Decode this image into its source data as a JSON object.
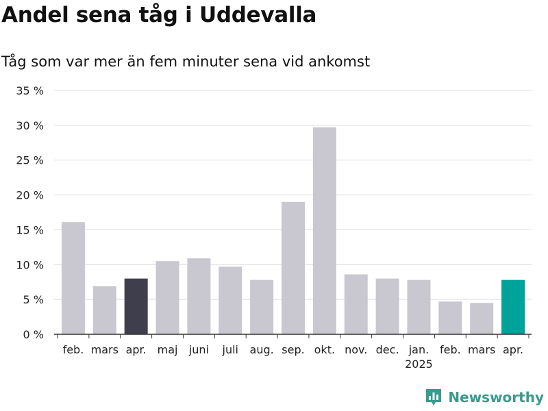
{
  "header": {
    "title": "Andel sena tåg i Uddevalla",
    "subtitle": "Tåg som var mer än fem minuter sena vid ankomst"
  },
  "brand": {
    "name": "Newsworthy",
    "color": "#3a9a8e",
    "icon": "bar-chart-pin-icon"
  },
  "colors": {
    "default": "#c9c8d1",
    "highlight_past": "#3f3e4c",
    "highlight_current": "#00a39a",
    "grid": "#dddddd",
    "axis": "#333333"
  },
  "chart_data": {
    "type": "bar",
    "categories": [
      "feb.",
      "mars",
      "apr.",
      "maj",
      "juni",
      "juli",
      "aug.",
      "sep.",
      "okt.",
      "nov.",
      "dec.",
      "jan.",
      "feb.",
      "mars",
      "apr."
    ],
    "year_labels": [
      "",
      "",
      "",
      "",
      "",
      "",
      "",
      "",
      "",
      "",
      "",
      "2025",
      "",
      "",
      ""
    ],
    "values": [
      16.1,
      6.9,
      8.0,
      10.5,
      10.9,
      9.7,
      7.8,
      19.0,
      29.7,
      8.6,
      8.0,
      7.8,
      4.7,
      4.5,
      7.8
    ],
    "highlight": [
      "default",
      "default",
      "past",
      "default",
      "default",
      "default",
      "default",
      "default",
      "default",
      "default",
      "default",
      "default",
      "default",
      "default",
      "current"
    ],
    "y_ticks": [
      "0 %",
      "5 %",
      "10 %",
      "15 %",
      "20 %",
      "25 %",
      "30 %",
      "35 %"
    ],
    "ylim": [
      0,
      35
    ],
    "ystep": 5,
    "grid": true,
    "title": "Andel sena tåg i Uddevalla",
    "subtitle": "Tåg som var mer än fem minuter sena vid ankomst"
  }
}
